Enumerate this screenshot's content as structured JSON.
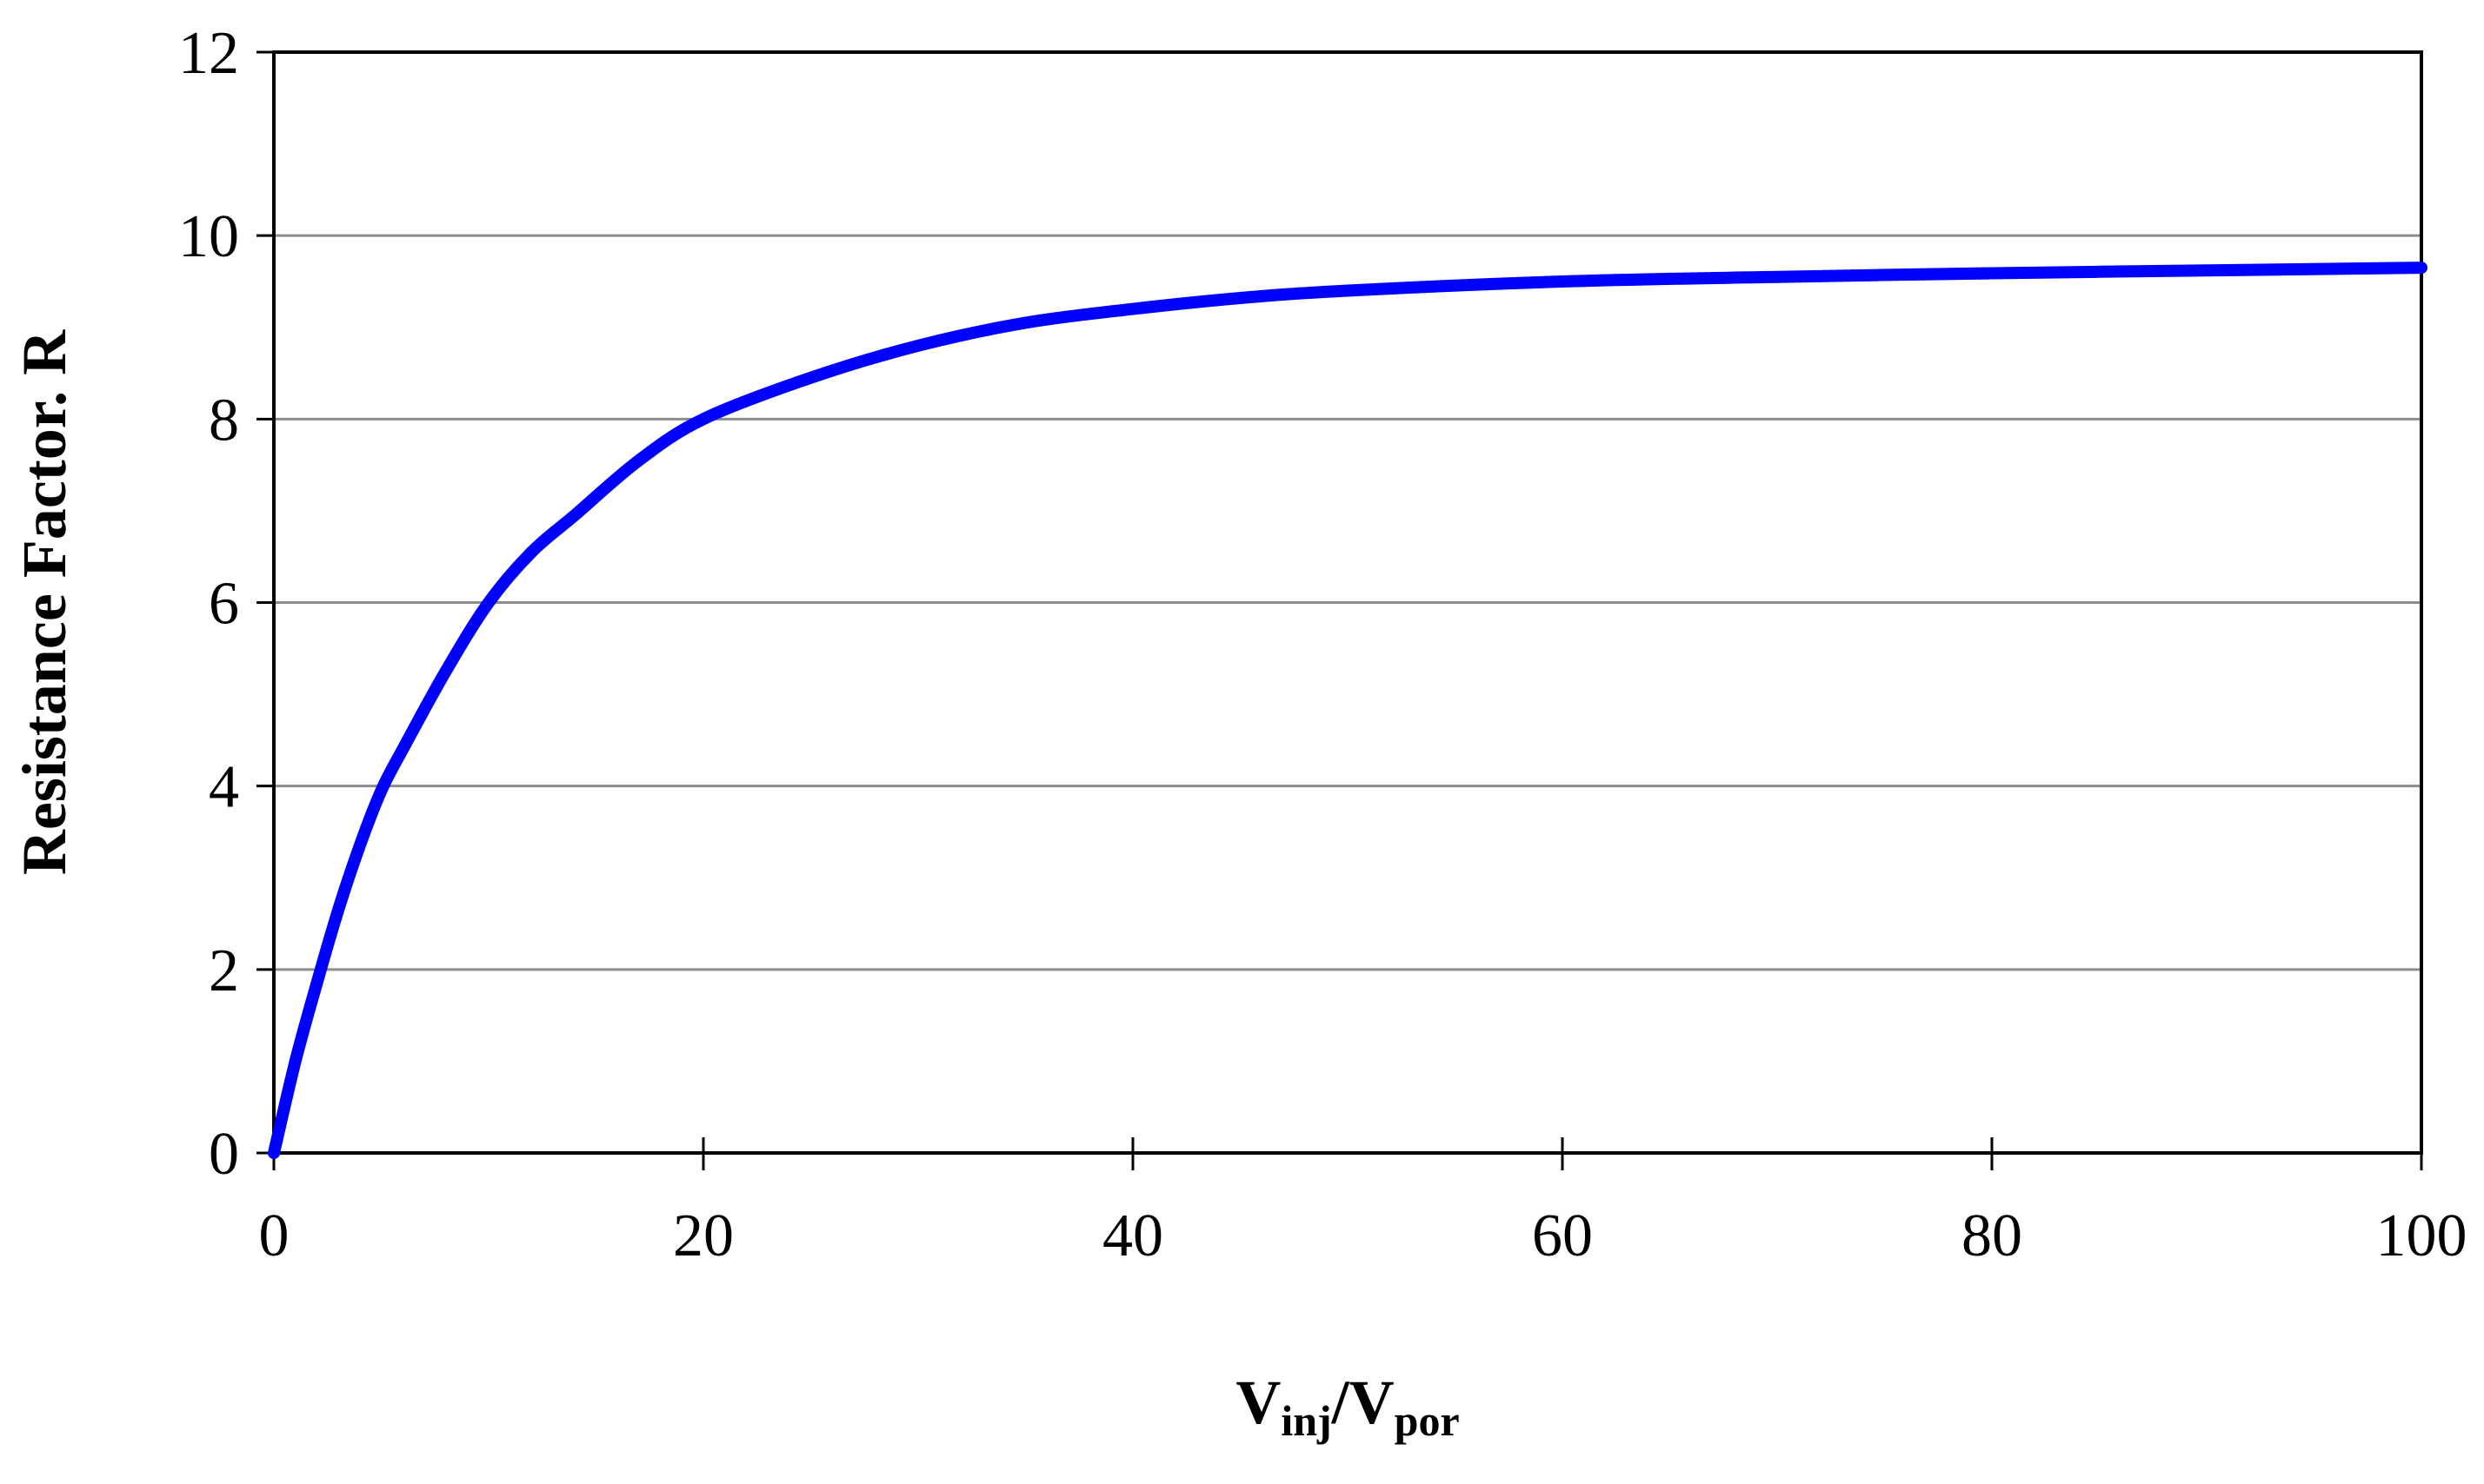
{
  "chart_data": {
    "type": "line",
    "xlabel": {
      "main1": "V",
      "sub1": "inj",
      "sep": "/V",
      "sub2": "por"
    },
    "ylabel": "Resistance Factor. R",
    "xlim": [
      0,
      100
    ],
    "ylim": [
      0,
      12
    ],
    "xticks": [
      "0",
      "20",
      "40",
      "60",
      "80",
      "100"
    ],
    "yticks": [
      "0",
      "2",
      "4",
      "6",
      "8",
      "10",
      "12"
    ],
    "grid": "horizontal",
    "series": [
      {
        "color": "#0000FF",
        "x": [
          0,
          1,
          2,
          3,
          4,
          5,
          6,
          8,
          10,
          12,
          14,
          17,
          20,
          25,
          30,
          35,
          40,
          45,
          50,
          60,
          70,
          80,
          90,
          100
        ],
        "y": [
          0,
          1.0,
          1.85,
          2.65,
          3.35,
          3.95,
          4.4,
          5.25,
          6.0,
          6.55,
          6.95,
          7.55,
          8.0,
          8.45,
          8.8,
          9.05,
          9.2,
          9.32,
          9.4,
          9.5,
          9.55,
          9.59,
          9.62,
          9.65
        ]
      }
    ]
  }
}
